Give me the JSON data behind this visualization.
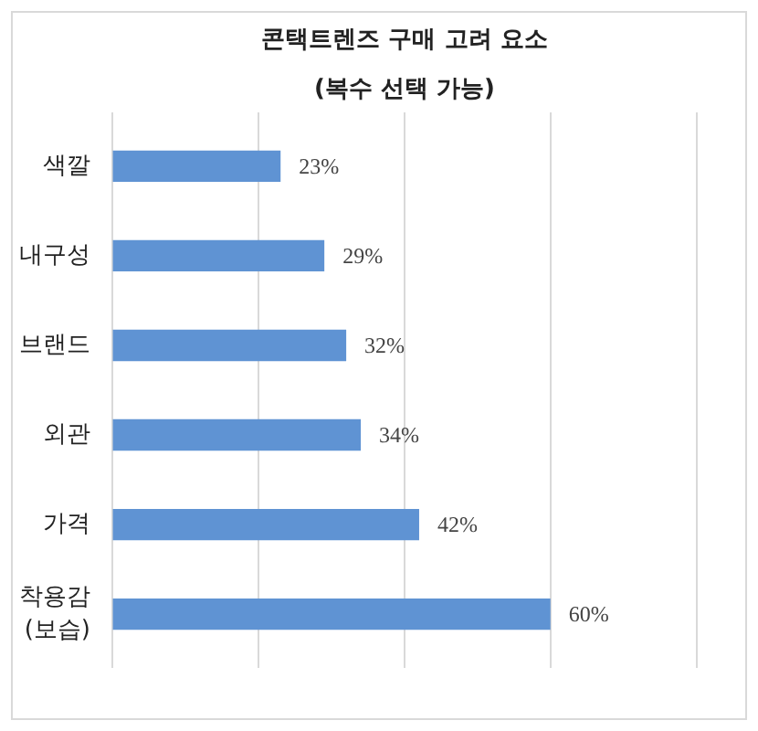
{
  "chart_data": {
    "type": "bar",
    "orientation": "horizontal",
    "title": "콘택트렌즈 구매 고려 요소",
    "subtitle": "(복수 선택 가능)",
    "categories": [
      "색깔",
      "내구성",
      "브랜드",
      "외관",
      "가격",
      "착용감 (보습)"
    ],
    "values": [
      23,
      29,
      32,
      34,
      42,
      60
    ],
    "value_labels": [
      "23%",
      "29%",
      "32%",
      "34%",
      "42%",
      "60%"
    ],
    "color": "#5f93d3",
    "xlim": [
      0,
      80
    ],
    "xticks": [
      {
        "value": 0,
        "label": null
      },
      {
        "value": 20,
        "label": null
      },
      {
        "value": 40,
        "label": null
      },
      {
        "value": 60,
        "label": null
      },
      {
        "value": 80,
        "label": null
      }
    ],
    "grid": "x",
    "tick_labels": "y"
  }
}
